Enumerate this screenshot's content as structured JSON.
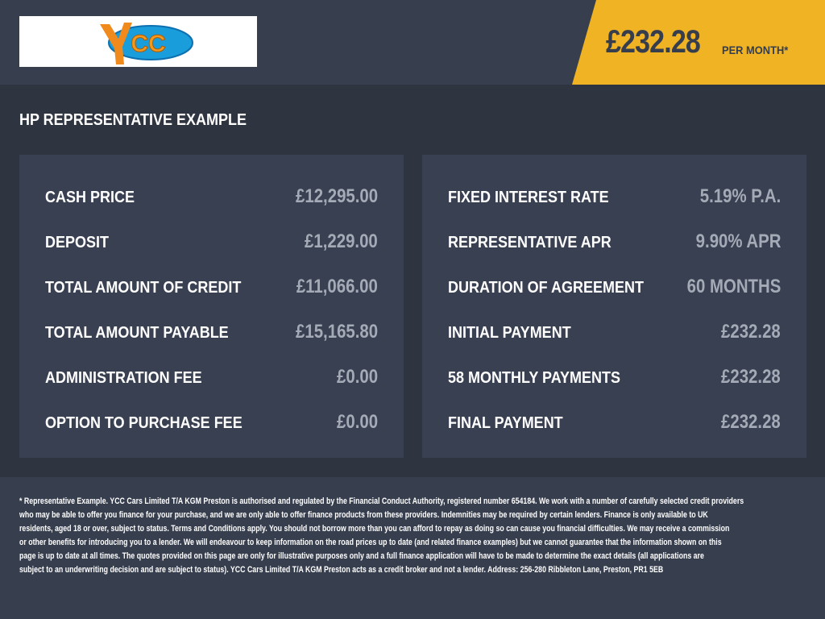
{
  "header": {
    "logo_text": "YCC",
    "price": "£232.28",
    "per_month": "PER MONTH*"
  },
  "title": "HP REPRESENTATIVE EXAMPLE",
  "left": [
    {
      "label": "CASH PRICE",
      "value": "£12,295.00"
    },
    {
      "label": "DEPOSIT",
      "value": "£1,229.00"
    },
    {
      "label": "TOTAL AMOUNT OF CREDIT",
      "value": "£11,066.00"
    },
    {
      "label": "TOTAL AMOUNT PAYABLE",
      "value": "£15,165.80"
    },
    {
      "label": "ADMINISTRATION FEE",
      "value": "£0.00"
    },
    {
      "label": "OPTION TO PURCHASE FEE",
      "value": "£0.00"
    }
  ],
  "right": [
    {
      "label": "FIXED INTEREST RATE",
      "value": "5.19% P.A."
    },
    {
      "label": "REPRESENTATIVE APR",
      "value": "9.90% APR"
    },
    {
      "label": "DURATION OF AGREEMENT",
      "value": "60 MONTHS"
    },
    {
      "label": "INITIAL PAYMENT",
      "value": "£232.28"
    },
    {
      "label": "58 MONTHLY PAYMENTS",
      "value": "£232.28"
    },
    {
      "label": "FINAL PAYMENT",
      "value": "£232.28"
    }
  ],
  "footer_lines": [
    "* Representative Example. YCC Cars Limited T/A KGM Preston  is authorised and regulated by the Financial Conduct Authority, registered number 654184. We work with a number of carefully selected credit providers",
    "who may be able to offer you finance for your purchase, and we are only able to offer finance products from these providers. Indemnities may be required by certain lenders. Finance is only available to UK",
    "residents, aged 18 or over, subject to status. Terms and Conditions apply. You should not borrow more than you can afford to repay as doing so can cause you financial difficulties. We may receive a commission",
    "or other benefits for introducing you to a lender. We will endeavour to keep information on the road prices up to date (and related finance examples) but we cannot guarantee that the information shown on this",
    "page is up to date at all times. The quotes provided on this page are only for illustrative purposes only and a full finance application will have to be made to determine the exact details (all applications are",
    "subject to an underwriting decision and are subject to status). YCC Cars Limited T/A KGM Preston  acts as a credit broker and not a lender. Address: 256-280 Ribbleton Lane, Preston, PR1 5EB"
  ],
  "colors": {
    "accent": "#f0b323",
    "header_bg": "#373e4e",
    "panel_bg": "#394052",
    "value_text": "#a4aab6"
  }
}
